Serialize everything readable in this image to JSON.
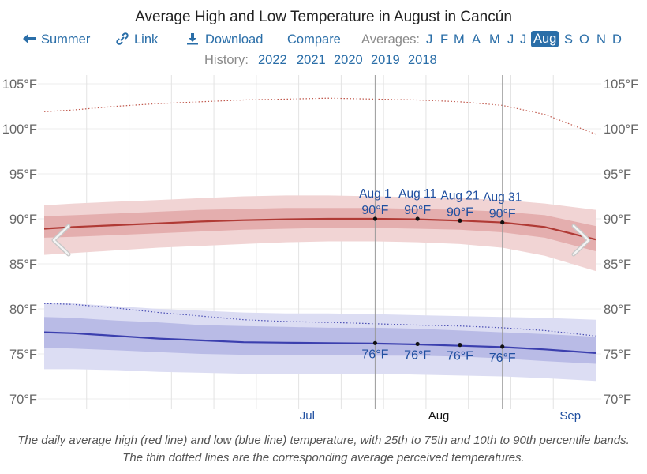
{
  "title": "Average High and Low Temperature in August in Cancún",
  "nav": {
    "summer": "Summer",
    "link": "Link",
    "download": "Download",
    "compare": "Compare",
    "averages_label": "Averages:",
    "months": [
      "J",
      "F",
      "M",
      "A",
      "M",
      "J",
      "J",
      "Aug",
      "S",
      "O",
      "N",
      "D"
    ],
    "active_month_index": 7
  },
  "history": {
    "label": "History:",
    "years": [
      "2022",
      "2021",
      "2020",
      "2019",
      "2018"
    ]
  },
  "icons": {
    "summer": "arrow-left-icon",
    "link": "link-icon",
    "download": "download-icon",
    "prev": "chevron-left-icon",
    "next": "chevron-right-icon"
  },
  "colors": {
    "link": "#2a6ea8",
    "high_line": "#b03a35",
    "high_band_inner": "#e4aeae",
    "high_band_outer": "#f1d4d4",
    "high_feels": "#c0584c",
    "low_line": "#3b3fae",
    "low_band_inner": "#b9bbe6",
    "low_band_outer": "#dcddf3",
    "low_feels": "#4a4eb4",
    "annotation": "#1f4fa0"
  },
  "chart_data": {
    "type": "area",
    "title": "Average High and Low Temperature in August in Cancún",
    "xlabel": "",
    "ylabel": "",
    "ylim": [
      70,
      105
    ],
    "yticks": [
      70,
      75,
      80,
      85,
      90,
      95,
      100,
      105
    ],
    "ytick_labels": [
      "70°F",
      "75°F",
      "80°F",
      "85°F",
      "90°F",
      "95°F",
      "100°F",
      "105°F"
    ],
    "x_range_days": [
      -47,
      83
    ],
    "x_tick_note": "day offset from Jul 1 (0 = Jul 1)",
    "month_labels": [
      {
        "label": "Jul",
        "day": 15,
        "highlight": false
      },
      {
        "label": "Aug",
        "day": 46,
        "highlight": true
      },
      {
        "label": "Sep",
        "day": 77,
        "highlight": false
      }
    ],
    "x": [
      -47,
      -40,
      -30,
      -20,
      -10,
      0,
      10,
      20,
      31,
      41,
      51,
      61,
      71,
      83
    ],
    "series": [
      {
        "name": "Average High",
        "values": [
          88.9,
          89.1,
          89.3,
          89.5,
          89.7,
          89.85,
          89.95,
          90.0,
          90.0,
          89.95,
          89.8,
          89.6,
          89.1,
          87.7
        ]
      },
      {
        "name": "High 25th percentile",
        "values": [
          87.9,
          88.0,
          88.2,
          88.4,
          88.6,
          88.8,
          88.9,
          89.0,
          89.0,
          88.9,
          88.8,
          88.5,
          87.9,
          86.4
        ]
      },
      {
        "name": "High 75th percentile",
        "values": [
          90.3,
          90.4,
          90.6,
          90.8,
          91.0,
          91.1,
          91.2,
          91.2,
          91.2,
          91.1,
          91.0,
          90.8,
          90.4,
          89.2
        ]
      },
      {
        "name": "High 10th percentile",
        "values": [
          86.0,
          86.2,
          86.5,
          86.8,
          87.0,
          87.2,
          87.4,
          87.5,
          87.5,
          87.4,
          87.2,
          86.8,
          85.9,
          84.2
        ]
      },
      {
        "name": "High 90th percentile",
        "values": [
          91.5,
          91.7,
          91.9,
          92.1,
          92.3,
          92.5,
          92.6,
          92.6,
          92.5,
          92.4,
          92.3,
          92.1,
          91.7,
          91.0
        ]
      },
      {
        "name": "High perceived",
        "values": [
          101.9,
          102.1,
          102.5,
          102.8,
          103.0,
          103.2,
          103.3,
          103.4,
          103.3,
          103.2,
          103.0,
          102.6,
          101.6,
          99.4
        ]
      },
      {
        "name": "Average Low",
        "values": [
          77.4,
          77.3,
          77.0,
          76.7,
          76.5,
          76.3,
          76.25,
          76.2,
          76.15,
          76.05,
          75.9,
          75.75,
          75.5,
          75.1
        ]
      },
      {
        "name": "Low 25th percentile",
        "values": [
          75.7,
          75.6,
          75.4,
          75.2,
          75.0,
          74.9,
          74.9,
          74.9,
          74.8,
          74.8,
          74.7,
          74.5,
          74.2,
          73.9
        ]
      },
      {
        "name": "Low 75th percentile",
        "values": [
          79.1,
          79.0,
          78.7,
          78.5,
          78.2,
          78.1,
          78.0,
          77.9,
          77.9,
          77.8,
          77.6,
          77.4,
          77.2,
          76.9
        ]
      },
      {
        "name": "Low 10th percentile",
        "values": [
          73.3,
          73.3,
          73.2,
          73.0,
          72.9,
          72.8,
          72.8,
          72.8,
          72.8,
          72.7,
          72.6,
          72.5,
          72.3,
          72.0
        ]
      },
      {
        "name": "Low 90th percentile",
        "values": [
          80.7,
          80.6,
          80.3,
          80.0,
          79.8,
          79.6,
          79.5,
          79.5,
          79.4,
          79.3,
          79.2,
          79.1,
          79.0,
          78.8
        ]
      },
      {
        "name": "Low perceived",
        "values": [
          80.6,
          80.5,
          80.1,
          79.6,
          79.2,
          78.8,
          78.6,
          78.5,
          78.35,
          78.2,
          78.1,
          77.9,
          77.6,
          77.0
        ]
      }
    ],
    "annotations": [
      {
        "date": "Aug 1",
        "day": 31,
        "high": 90.0,
        "high_label": "90°F",
        "low": 76.2,
        "low_label": "76°F"
      },
      {
        "date": "Aug 11",
        "day": 41,
        "high": 90.0,
        "high_label": "90°F",
        "low": 76.1,
        "low_label": "76°F"
      },
      {
        "date": "Aug 21",
        "day": 51,
        "high": 89.8,
        "high_label": "90°F",
        "low": 76.0,
        "low_label": "76°F"
      },
      {
        "date": "Aug 31",
        "day": 61,
        "high": 89.6,
        "high_label": "90°F",
        "low": 75.8,
        "low_label": "76°F"
      }
    ],
    "grid": true,
    "vertical_grid_days": [
      -37,
      -27,
      -17,
      -7,
      3,
      13,
      23,
      33,
      43,
      53,
      63,
      73
    ]
  },
  "caption": "The daily average high (red line) and low (blue line) temperature, with 25th to 75th and 10th to 90th percentile bands. The thin dotted lines are the corresponding average perceived temperatures."
}
